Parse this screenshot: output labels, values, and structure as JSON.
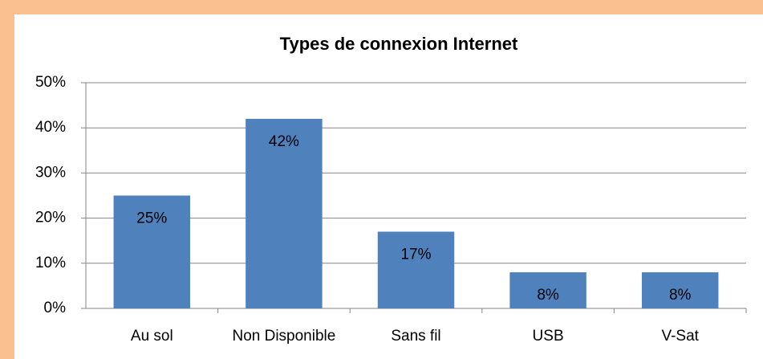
{
  "chart_data": {
    "type": "bar",
    "title": "Types de connexion Internet",
    "categories": [
      "Au sol",
      "Non Disponible",
      "Sans fil",
      "USB",
      "V-Sat"
    ],
    "values": [
      25,
      42,
      17,
      8,
      8
    ],
    "value_labels": [
      "25%",
      "42%",
      "17%",
      "8%",
      "8%"
    ],
    "color": "#4f81bd",
    "ylim": [
      0,
      50
    ],
    "yticks": [
      {
        "value": 0,
        "label": "0%"
      },
      {
        "value": 10,
        "label": "10%"
      },
      {
        "value": 20,
        "label": "20%"
      },
      {
        "value": 30,
        "label": "30%"
      },
      {
        "value": 40,
        "label": "40%"
      },
      {
        "value": 50,
        "label": "50%"
      }
    ],
    "grid": true
  }
}
